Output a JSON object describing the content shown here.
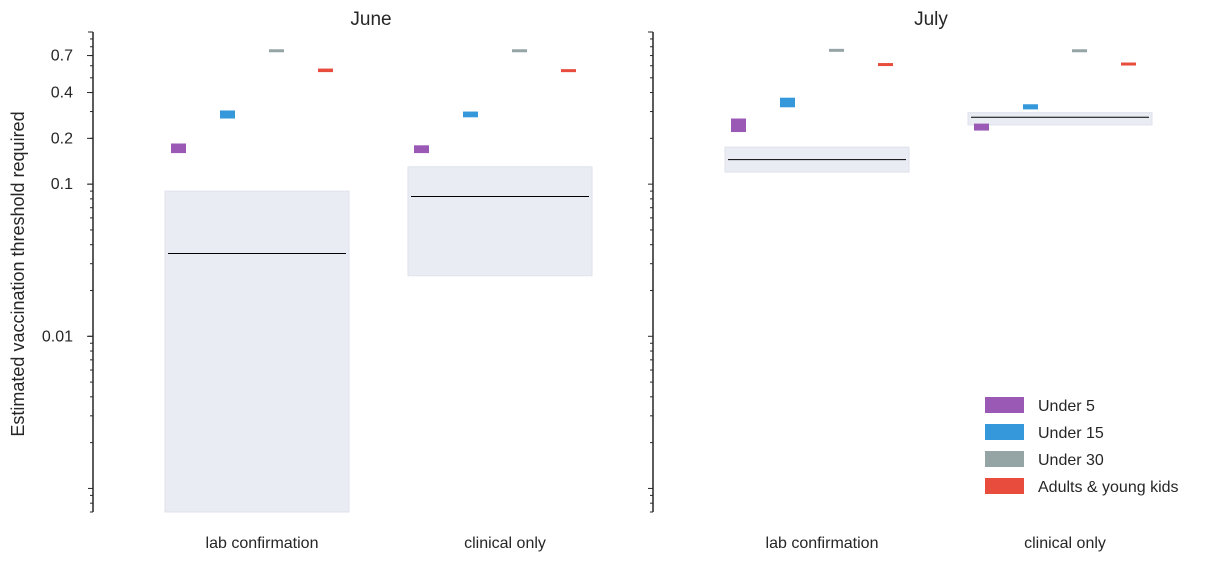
{
  "chart_data": {
    "type": "box",
    "ylabel": "Estimated vaccination threshold required",
    "yscale": "log",
    "ylim": [
      0.0007,
      1.0
    ],
    "y_ticks": [
      {
        "value": 0.7,
        "label": "0.7"
      },
      {
        "value": 0.4,
        "label": "0.4"
      },
      {
        "value": 0.2,
        "label": "0.2"
      },
      {
        "value": 0.1,
        "label": "0.1"
      },
      {
        "value": 0.01,
        "label": "0.01"
      }
    ],
    "categories": [
      "lab confirmation",
      "clinical only"
    ],
    "series": [
      {
        "name": "Under 5",
        "color": "#9b59b6"
      },
      {
        "name": "Under 15",
        "color": "#3498db"
      },
      {
        "name": "Under 30",
        "color": "#95a5a6"
      },
      {
        "name": "Adults & young kids",
        "color": "#e74c3c"
      }
    ],
    "legend_position": "lower right",
    "panels": [
      {
        "title": "June",
        "groups": [
          {
            "category": "lab confirmation",
            "band": {
              "low": 0.0007,
              "high": 0.09,
              "median": 0.035
            },
            "markers": [
              {
                "series": "Under 5",
                "low": 0.16,
                "high": 0.185
              },
              {
                "series": "Under 15",
                "low": 0.27,
                "high": 0.305
              },
              {
                "series": "Under 30",
                "low": 0.74,
                "high": 0.77
              },
              {
                "series": "Adults & young kids",
                "low": 0.545,
                "high": 0.575
              }
            ]
          },
          {
            "category": "clinical only",
            "band": {
              "low": 0.025,
              "high": 0.13,
              "median": 0.083
            },
            "markers": [
              {
                "series": "Under 5",
                "low": 0.16,
                "high": 0.18
              },
              {
                "series": "Under 15",
                "low": 0.275,
                "high": 0.3
              },
              {
                "series": "Under 30",
                "low": 0.745,
                "high": 0.77
              },
              {
                "series": "Adults & young kids",
                "low": 0.55,
                "high": 0.57
              }
            ]
          }
        ]
      },
      {
        "title": "July",
        "groups": [
          {
            "category": "lab confirmation",
            "band": {
              "low": 0.12,
              "high": 0.175,
              "median": 0.145
            },
            "markers": [
              {
                "series": "Under 5",
                "low": 0.22,
                "high": 0.27
              },
              {
                "series": "Under 15",
                "low": 0.32,
                "high": 0.37
              },
              {
                "series": "Under 30",
                "low": 0.745,
                "high": 0.775
              },
              {
                "series": "Adults & young kids",
                "low": 0.6,
                "high": 0.625
              }
            ]
          },
          {
            "category": "clinical only",
            "band": {
              "low": 0.245,
              "high": 0.295,
              "median": 0.275
            },
            "markers": [
              {
                "series": "Under 5",
                "low": 0.225,
                "high": 0.25
              },
              {
                "series": "Under 15",
                "low": 0.31,
                "high": 0.335
              },
              {
                "series": "Under 30",
                "low": 0.745,
                "high": 0.77
              },
              {
                "series": "Adults & young kids",
                "low": 0.61,
                "high": 0.63
              }
            ]
          }
        ]
      }
    ]
  }
}
